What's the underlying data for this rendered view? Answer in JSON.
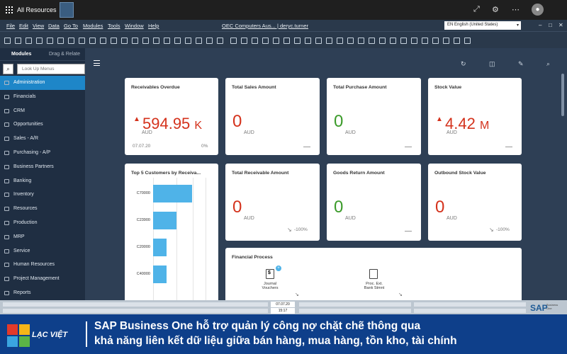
{
  "taskbar": {
    "title": "All Resources"
  },
  "menu": {
    "items": [
      "File",
      "Edit",
      "View",
      "Data",
      "Go To",
      "Modules",
      "Tools",
      "Window",
      "Help"
    ],
    "company": "OEC Computers Aus... | deryc.turner",
    "language": "EN English (United States)",
    "window_controls": [
      "–",
      "□",
      "✕"
    ]
  },
  "sidebar": {
    "tabs": [
      "Modules",
      "Drag & Relate"
    ],
    "search_placeholder": "Look Up Menus",
    "items": [
      {
        "label": "Administration",
        "active": true
      },
      {
        "label": "Financials"
      },
      {
        "label": "CRM"
      },
      {
        "label": "Opportunities"
      },
      {
        "label": "Sales - A/R"
      },
      {
        "label": "Purchasing - A/P"
      },
      {
        "label": "Business Partners"
      },
      {
        "label": "Banking"
      },
      {
        "label": "Inventory"
      },
      {
        "label": "Resources"
      },
      {
        "label": "Production"
      },
      {
        "label": "MRP"
      },
      {
        "label": "Service"
      },
      {
        "label": "Human Resources"
      },
      {
        "label": "Project Management"
      },
      {
        "label": "Reports"
      }
    ]
  },
  "cards": {
    "receivables": {
      "title": "Receivables Overdue",
      "value": "594.95",
      "suffix": "K",
      "unit": "AUD",
      "date": "07.07.20",
      "percent": "0%"
    },
    "total_sales": {
      "title": "Total Sales Amount",
      "value": "0",
      "unit": "AUD"
    },
    "total_purchase": {
      "title": "Total Purchase Amount",
      "value": "0",
      "unit": "AUD"
    },
    "stock_value": {
      "title": "Stock Value",
      "value": "4.42",
      "suffix": "M",
      "unit": "AUD"
    },
    "total_receivable": {
      "title": "Total Receivable Amount",
      "value": "0",
      "unit": "AUD",
      "change": "-100%"
    },
    "goods_return": {
      "title": "Goods Return Amount",
      "value": "0",
      "unit": "AUD"
    },
    "outbound_stock": {
      "title": "Outbound Stock Value",
      "value": "0",
      "unit": "AUD",
      "change": "-100%"
    }
  },
  "top5": {
    "title": "Top 5 Customers by Receiva...",
    "color": "#4fb3e8"
  },
  "chart_data": {
    "type": "bar",
    "orientation": "horizontal",
    "title": "Top 5 Customers by Receiva...",
    "categories": [
      "C70000",
      "C23900",
      "C20000",
      "C40000"
    ],
    "values": [
      100,
      60,
      35,
      35
    ]
  },
  "financial_process": {
    "title": "Financial Process",
    "nodes": [
      {
        "label1": "Journal",
        "label2": "Vouchers"
      },
      {
        "label1": "Proc. Ext.",
        "label2": "Bank Stmnt"
      }
    ]
  },
  "statusbar": {
    "date": "07.07.20",
    "time": "15:17",
    "brand": "SAP",
    "brand_sub1": "Business",
    "brand_sub2": "One"
  },
  "banner": {
    "brand": "LẠC VIỆT",
    "line1": "SAP Business One hỗ trợ quản lý công nợ chặt chẽ thông qua",
    "line2": "khả năng liên kết dữ liệu giữa bán hàng, mua hàng, tồn kho, tài chính"
  }
}
